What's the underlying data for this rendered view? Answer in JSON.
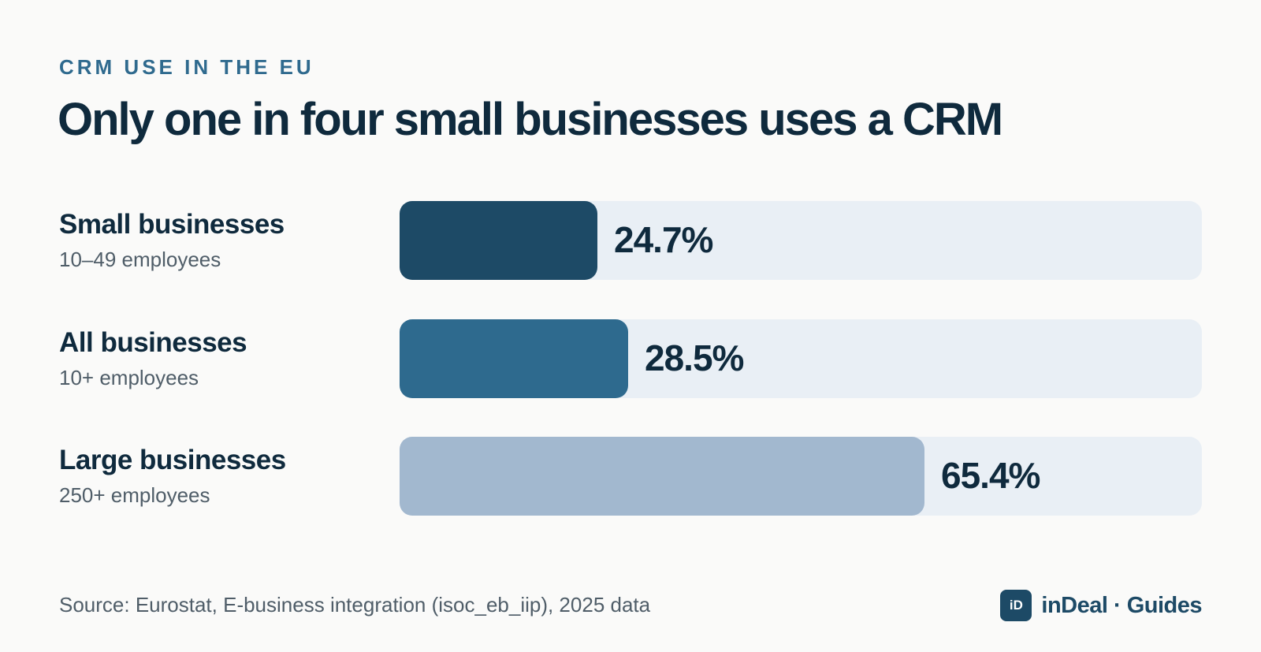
{
  "header": {
    "eyebrow": "CRM USE IN THE EU",
    "title": "Only one in four small businesses uses a CRM"
  },
  "chart_data": {
    "type": "bar",
    "orientation": "horizontal",
    "xlim": [
      0,
      100
    ],
    "categories": [
      "Small businesses",
      "All businesses",
      "Large businesses"
    ],
    "subtitles": [
      "10–49 employees",
      "10+ employees",
      "250+ employees"
    ],
    "values": [
      24.7,
      28.5,
      65.4
    ],
    "value_labels": [
      "24.7%",
      "28.5%",
      "65.4%"
    ],
    "colors": [
      "#1d4a66",
      "#2e6a8e",
      "#a2b8cf"
    ],
    "track_color": "#e9eff5"
  },
  "footer": {
    "source": "Source: Eurostat, E-business integration (isoc_eb_iip), 2025 data",
    "brand_logo": "iD",
    "brand_name": "inDeal · Guides"
  }
}
